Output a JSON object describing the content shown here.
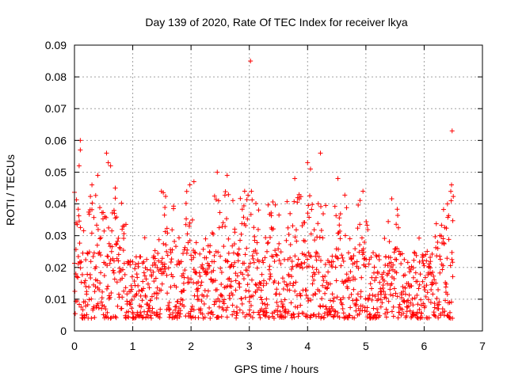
{
  "chart_data": {
    "type": "scatter",
    "title": "Day 139 of 2020, Rate Of TEC Index for receiver lkya",
    "xlabel": "GPS time / hours",
    "ylabel": "ROTI / TECUs",
    "xlim": [
      0,
      7
    ],
    "ylim": [
      0,
      0.09
    ],
    "xticks": [
      0,
      1,
      2,
      3,
      4,
      5,
      6,
      7
    ],
    "yticks": [
      0,
      0.01,
      0.02,
      0.03,
      0.04,
      0.05,
      0.06,
      0.07,
      0.08,
      0.09
    ],
    "xtick_labels": [
      "0",
      "1",
      "2",
      "3",
      "4",
      "5",
      "6",
      "7"
    ],
    "ytick_labels": [
      "0",
      "0.01",
      "0.02",
      "0.03",
      "0.04",
      "0.05",
      "0.06",
      "0.07",
      "0.08",
      "0.09"
    ],
    "grid": true,
    "marker": "+",
    "series": [
      {
        "name": "",
        "color": "#ff0000",
        "x_range": [
          0.0,
          6.5
        ],
        "typical_y_range": [
          0.004,
          0.025
        ],
        "points": [
          {
            "x": 0.1,
            "y": 0.06
          },
          {
            "x": 0.08,
            "y": 0.052
          },
          {
            "x": 0.1,
            "y": 0.057
          },
          {
            "x": 0.3,
            "y": 0.046
          },
          {
            "x": 0.4,
            "y": 0.049
          },
          {
            "x": 0.55,
            "y": 0.056
          },
          {
            "x": 0.58,
            "y": 0.053
          },
          {
            "x": 0.62,
            "y": 0.052
          },
          {
            "x": 0.7,
            "y": 0.045
          },
          {
            "x": 1.98,
            "y": 0.046
          },
          {
            "x": 2.05,
            "y": 0.047
          },
          {
            "x": 2.45,
            "y": 0.05
          },
          {
            "x": 2.62,
            "y": 0.049
          },
          {
            "x": 2.92,
            "y": 0.044
          },
          {
            "x": 3.02,
            "y": 0.085
          },
          {
            "x": 3.78,
            "y": 0.048
          },
          {
            "x": 4.0,
            "y": 0.053
          },
          {
            "x": 4.05,
            "y": 0.051
          },
          {
            "x": 4.22,
            "y": 0.056
          },
          {
            "x": 4.52,
            "y": 0.048
          },
          {
            "x": 4.95,
            "y": 0.044
          },
          {
            "x": 6.48,
            "y": 0.063
          },
          {
            "x": 6.47,
            "y": 0.046
          },
          {
            "x": 6.4,
            "y": 0.04
          }
        ]
      }
    ]
  }
}
